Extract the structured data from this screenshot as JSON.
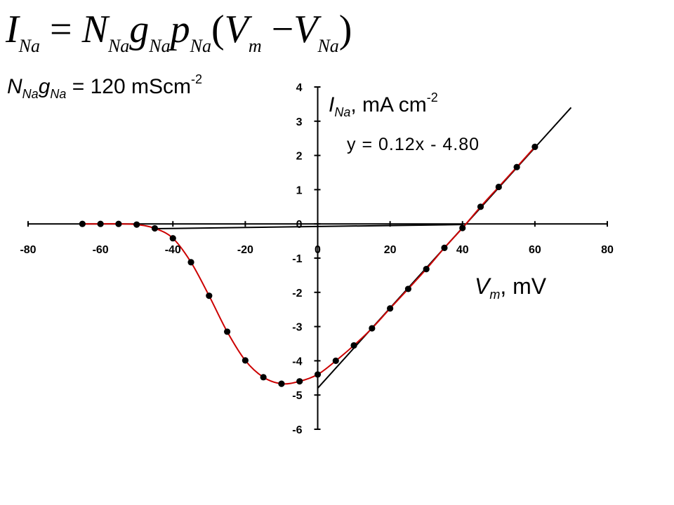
{
  "equation": {
    "lhs": "I",
    "lhs_sub": "Na",
    "eq": "=",
    "n": "N",
    "n_sub": "Na",
    "g": "g",
    "g_sub": "Na",
    "p": "p",
    "p_sub": "Na",
    "open": "(",
    "v": "V",
    "v_sub": "m",
    "minus": "−",
    "v2": "V",
    "v2_sub": "Na",
    "close": ")"
  },
  "conductance": {
    "n": "N",
    "n_sub": "Na",
    "g": "g",
    "g_sub": "Na",
    "rest": " = 120 mScm",
    "exp": "-2"
  },
  "chart_data": {
    "type": "line",
    "ylabel": {
      "symbol": "I",
      "sub": "Na",
      "rest": ", mA cm",
      "exp": "-2"
    },
    "xlabel": {
      "symbol": "V",
      "sub": "m",
      "rest": ", mV"
    },
    "xlim": [
      -80,
      80
    ],
    "ylim": [
      -6,
      4
    ],
    "xticks": [
      -80,
      -60,
      -40,
      -20,
      0,
      20,
      40,
      60,
      80
    ],
    "yticks": [
      -6,
      -5,
      -4,
      -3,
      -2,
      -1,
      0,
      1,
      2,
      3,
      4
    ],
    "grid": false,
    "series": [
      {
        "x": [
          -65,
          -60,
          -55,
          -50,
          -45,
          -40,
          -35,
          -30,
          -25,
          -20,
          -15,
          -10,
          -5,
          0,
          5,
          10,
          15,
          20,
          25,
          30,
          35,
          40,
          45,
          50,
          55,
          60
        ],
        "y": [
          0.0,
          0.0,
          0.0,
          -0.02,
          -0.13,
          -0.42,
          -1.12,
          -2.1,
          -3.15,
          -3.99,
          -4.48,
          -4.67,
          -4.6,
          -4.4,
          -4.0,
          -3.55,
          -3.05,
          -2.47,
          -1.9,
          -1.32,
          -0.7,
          -0.12,
          0.5,
          1.08,
          1.66,
          2.25
        ],
        "color": "#cc0000",
        "marker_color": "#000000"
      }
    ],
    "fit_lines": [
      {
        "from": [
          0,
          -4.8
        ],
        "to": [
          70,
          3.4
        ],
        "color": "#000000"
      },
      {
        "from": [
          -45,
          -0.14
        ],
        "to": [
          40,
          -0.02
        ],
        "color": "#000000"
      }
    ],
    "annotations": [
      {
        "text": "y = 0.12x - 4.80"
      }
    ]
  }
}
